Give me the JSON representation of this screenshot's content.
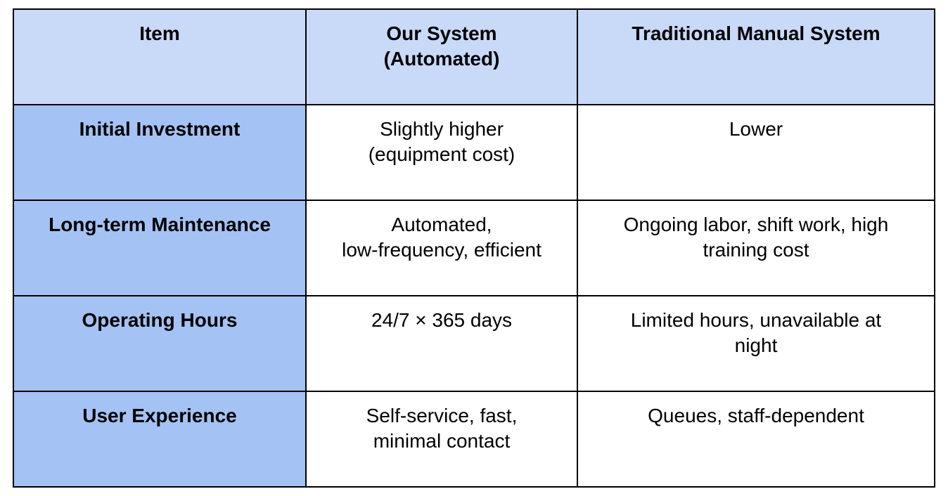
{
  "table": {
    "headers": [
      [
        "Item"
      ],
      [
        "Our System",
        "(Automated)"
      ],
      [
        "Traditional Manual System"
      ]
    ],
    "rows": [
      {
        "item": "Initial Investment",
        "our_system": [
          "Slightly higher",
          "(equipment cost)"
        ],
        "manual_system": [
          "Lower"
        ]
      },
      {
        "item": "Long-term Maintenance",
        "our_system": [
          "Automated,",
          "low-frequency, efficient"
        ],
        "manual_system": [
          "Ongoing labor, shift work, high",
          "training cost"
        ]
      },
      {
        "item": "Operating Hours",
        "our_system": [
          "24/7 × 365 days"
        ],
        "manual_system": [
          "Limited hours, unavailable at",
          "night"
        ]
      },
      {
        "item": "User Experience",
        "our_system": [
          "Self-service, fast,",
          "minimal contact"
        ],
        "manual_system": [
          "Queues, staff-dependent"
        ]
      }
    ],
    "colors": {
      "header_bg": "#c9daf8",
      "row_head_bg": "#a4c2f4",
      "cell_bg": "#ffffff",
      "border": "#000000"
    }
  }
}
